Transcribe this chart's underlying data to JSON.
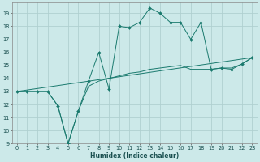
{
  "xlabel": "Humidex (Indice chaleur)",
  "ylabel": "",
  "xlim": [
    -0.5,
    23.5
  ],
  "ylim": [
    9,
    19.8
  ],
  "yticks": [
    9,
    10,
    11,
    12,
    13,
    14,
    15,
    16,
    17,
    18,
    19
  ],
  "xticks": [
    0,
    1,
    2,
    3,
    4,
    5,
    6,
    7,
    8,
    9,
    10,
    11,
    12,
    13,
    14,
    15,
    16,
    17,
    18,
    19,
    20,
    21,
    22,
    23
  ],
  "bg_color": "#cce9e9",
  "line_color": "#1a7a6e",
  "grid_color": "#b0d0d0",
  "series1_x": [
    0,
    1,
    2,
    3,
    4,
    5,
    6,
    7,
    8,
    9,
    10,
    11,
    12,
    13,
    14,
    15,
    16,
    17,
    18,
    19,
    20,
    21,
    22,
    23
  ],
  "series1_y": [
    13.0,
    13.0,
    13.0,
    13.0,
    11.9,
    9.0,
    11.5,
    13.8,
    16.0,
    13.2,
    18.0,
    17.9,
    18.3,
    19.4,
    19.0,
    18.3,
    18.3,
    17.0,
    18.3,
    14.7,
    14.8,
    14.7,
    15.1,
    15.6
  ],
  "series2_x": [
    0,
    23
  ],
  "series2_y": [
    13.0,
    15.6
  ],
  "series3_x": [
    0,
    1,
    2,
    3,
    4,
    5,
    6,
    7,
    8,
    9,
    10,
    11,
    12,
    13,
    14,
    15,
    16,
    17,
    18,
    19,
    20,
    21,
    22,
    23
  ],
  "series3_y": [
    13.0,
    13.0,
    13.0,
    13.0,
    11.9,
    9.0,
    11.5,
    13.4,
    13.8,
    14.0,
    14.2,
    14.4,
    14.5,
    14.7,
    14.8,
    14.9,
    15.0,
    14.7,
    14.7,
    14.7,
    14.8,
    14.8,
    15.1,
    15.6
  ]
}
